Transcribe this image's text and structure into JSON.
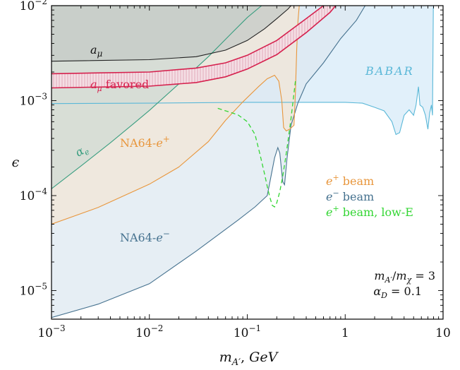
{
  "chart_data": {
    "type": "area",
    "xlabel": "m_{A'}, GeV",
    "ylabel": "ε",
    "xscale": "log",
    "yscale": "log",
    "xlim": [
      0.001,
      10
    ],
    "ylim": [
      5e-06,
      0.01
    ],
    "x_ticks": [
      {
        "value": 0.001,
        "base": "10",
        "exp": "−3"
      },
      {
        "value": 0.01,
        "base": "10",
        "exp": "−2"
      },
      {
        "value": 0.1,
        "base": "10",
        "exp": "−1"
      },
      {
        "value": 1,
        "base": "1",
        "exp": ""
      },
      {
        "value": 10,
        "base": "10",
        "exp": ""
      }
    ],
    "y_ticks": [
      {
        "value": 1e-05,
        "base": "10",
        "exp": "−5"
      },
      {
        "value": 0.0001,
        "base": "10",
        "exp": "−4"
      },
      {
        "value": 0.001,
        "base": "10",
        "exp": "−3"
      },
      {
        "value": 0.01,
        "base": "10",
        "exp": "−2"
      }
    ],
    "regions": [
      {
        "key": "babar",
        "label": "BABAR",
        "fill": "#d6eaf8",
        "stroke": "#5bb8d8",
        "points": [
          [
            0.001,
            0.00093
          ],
          [
            0.01,
            0.00094
          ],
          [
            0.1,
            0.00096
          ],
          [
            1,
            0.00096
          ],
          [
            1.5,
            0.00094
          ],
          [
            2,
            0.00085
          ],
          [
            2.5,
            0.00078
          ],
          [
            3.0,
            0.0006
          ],
          [
            3.3,
            0.00044
          ],
          [
            3.6,
            0.00046
          ],
          [
            4.0,
            0.0007
          ],
          [
            4.5,
            0.0008
          ],
          [
            5.0,
            0.0007
          ],
          [
            5.3,
            0.0009
          ],
          [
            5.6,
            0.0014
          ],
          [
            5.8,
            0.0009
          ],
          [
            6.2,
            0.00085
          ],
          [
            6.6,
            0.0007
          ],
          [
            7.0,
            0.0005
          ],
          [
            7.3,
            0.00074
          ],
          [
            7.6,
            0.0009
          ],
          [
            7.8,
            0.0007
          ],
          [
            7.95,
            0.0094
          ],
          [
            8.0,
            0.01
          ]
        ]
      },
      {
        "key": "nume",
        "label": "NA64-e⁻",
        "fill": "#dde8f0",
        "stroke": "#46728f",
        "points": [
          [
            0.001,
            5.2e-06
          ],
          [
            0.003,
            7.2e-06
          ],
          [
            0.01,
            1.18e-05
          ],
          [
            0.03,
            2.6e-05
          ],
          [
            0.08,
            5.5e-05
          ],
          [
            0.12,
            7.6e-05
          ],
          [
            0.16,
            0.0001
          ],
          [
            0.19,
            0.00025
          ],
          [
            0.205,
            0.00032
          ],
          [
            0.215,
            0.00028
          ],
          [
            0.23,
            0.00014
          ],
          [
            0.24,
            0.00013
          ],
          [
            0.255,
            0.00025
          ],
          [
            0.28,
            0.00055
          ],
          [
            0.33,
            0.00095
          ],
          [
            0.4,
            0.0015
          ],
          [
            0.6,
            0.0025
          ],
          [
            0.9,
            0.0045
          ],
          [
            1.3,
            0.007
          ],
          [
            1.6,
            0.01
          ]
        ]
      },
      {
        "key": "nump",
        "label": "NA64-e⁺",
        "fill": "#f3e6d6",
        "stroke": "#e8963c",
        "points": [
          [
            0.001,
            5e-05
          ],
          [
            0.003,
            7.5e-05
          ],
          [
            0.01,
            0.000132
          ],
          [
            0.02,
            0.0002
          ],
          [
            0.04,
            0.00037
          ],
          [
            0.06,
            0.00062
          ],
          [
            0.09,
            0.00097
          ],
          [
            0.13,
            0.0014
          ],
          [
            0.16,
            0.0017
          ],
          [
            0.19,
            0.00185
          ],
          [
            0.21,
            0.0016
          ],
          [
            0.225,
            0.001
          ],
          [
            0.235,
            0.00052
          ],
          [
            0.25,
            0.00048
          ],
          [
            0.27,
            0.0005
          ],
          [
            0.3,
            0.00055
          ],
          [
            0.31,
            0.0012
          ],
          [
            0.32,
            0.0035
          ],
          [
            0.33,
            0.007
          ],
          [
            0.34,
            0.01
          ]
        ]
      },
      {
        "key": "alphae",
        "label": "α_e",
        "fill": "#cfd9d2",
        "stroke": "#3a9e80",
        "points": [
          [
            0.001,
            0.000118
          ],
          [
            0.002,
            0.000205
          ],
          [
            0.004,
            0.00036
          ],
          [
            0.007,
            0.00058
          ],
          [
            0.01,
            0.00079
          ],
          [
            0.02,
            0.0015
          ],
          [
            0.04,
            0.0029
          ],
          [
            0.07,
            0.0052
          ],
          [
            0.1,
            0.0075
          ],
          [
            0.14,
            0.01
          ]
        ]
      },
      {
        "key": "amu",
        "label": "a_μ",
        "fill": "#c3c9c5",
        "stroke": "#222222",
        "points": [
          [
            0.001,
            0.0026
          ],
          [
            0.01,
            0.0027
          ],
          [
            0.03,
            0.0029
          ],
          [
            0.06,
            0.0034
          ],
          [
            0.1,
            0.0043
          ],
          [
            0.15,
            0.0057
          ],
          [
            0.2,
            0.0073
          ],
          [
            0.26,
            0.0092
          ],
          [
            0.28,
            0.01
          ]
        ]
      }
    ],
    "favored_band": {
      "label": "a_μ favored",
      "color": "#d6214e",
      "fill": "#ebc4cf",
      "lower": [
        [
          0.001,
          0.00136
        ],
        [
          0.01,
          0.00142
        ],
        [
          0.03,
          0.00155
        ],
        [
          0.06,
          0.00178
        ],
        [
          0.1,
          0.00215
        ],
        [
          0.2,
          0.00305
        ],
        [
          0.4,
          0.0052
        ],
        [
          0.7,
          0.0085
        ],
        [
          0.8,
          0.01
        ]
      ],
      "upper": [
        [
          0.001,
          0.00192
        ],
        [
          0.01,
          0.002
        ],
        [
          0.03,
          0.0022
        ],
        [
          0.06,
          0.0025
        ],
        [
          0.1,
          0.003
        ],
        [
          0.2,
          0.0043
        ],
        [
          0.4,
          0.0073
        ],
        [
          0.6,
          0.01
        ]
      ]
    },
    "lowE_curve": {
      "label": "e⁺ beam, low-E",
      "color": "#34d634",
      "points": [
        [
          0.05,
          0.00083
        ],
        [
          0.08,
          0.00071
        ],
        [
          0.1,
          0.0006
        ],
        [
          0.12,
          0.00044
        ],
        [
          0.135,
          0.00027
        ],
        [
          0.15,
          0.00017
        ],
        [
          0.16,
          0.000125
        ],
        [
          0.17,
          9.6e-05
        ],
        [
          0.18,
          7.9e-05
        ],
        [
          0.19,
          7.6e-05
        ],
        [
          0.2,
          8.4e-05
        ],
        [
          0.215,
          0.00011
        ],
        [
          0.23,
          0.00016
        ],
        [
          0.245,
          0.00024
        ],
        [
          0.26,
          0.00037
        ],
        [
          0.28,
          0.00065
        ],
        [
          0.3,
          0.0012
        ],
        [
          0.31,
          0.0016
        ]
      ]
    },
    "region_labels": {
      "babar": "BABAR",
      "nump": "NA64-e⁺",
      "nume": "NA64-e⁻",
      "alphae": "α_e",
      "amu": "a_μ",
      "favored": "a_μ favored"
    },
    "legend": {
      "placement": "center-right",
      "entries": [
        {
          "label": "e⁺ beam",
          "color": "#e8963c"
        },
        {
          "label": "e⁻ beam",
          "color": "#46728f"
        },
        {
          "label": "e⁺ beam, low-E",
          "color": "#34d634"
        }
      ]
    },
    "annotations": [
      "m_{A'}/m_χ = 3",
      "α_D = 0.1"
    ]
  }
}
